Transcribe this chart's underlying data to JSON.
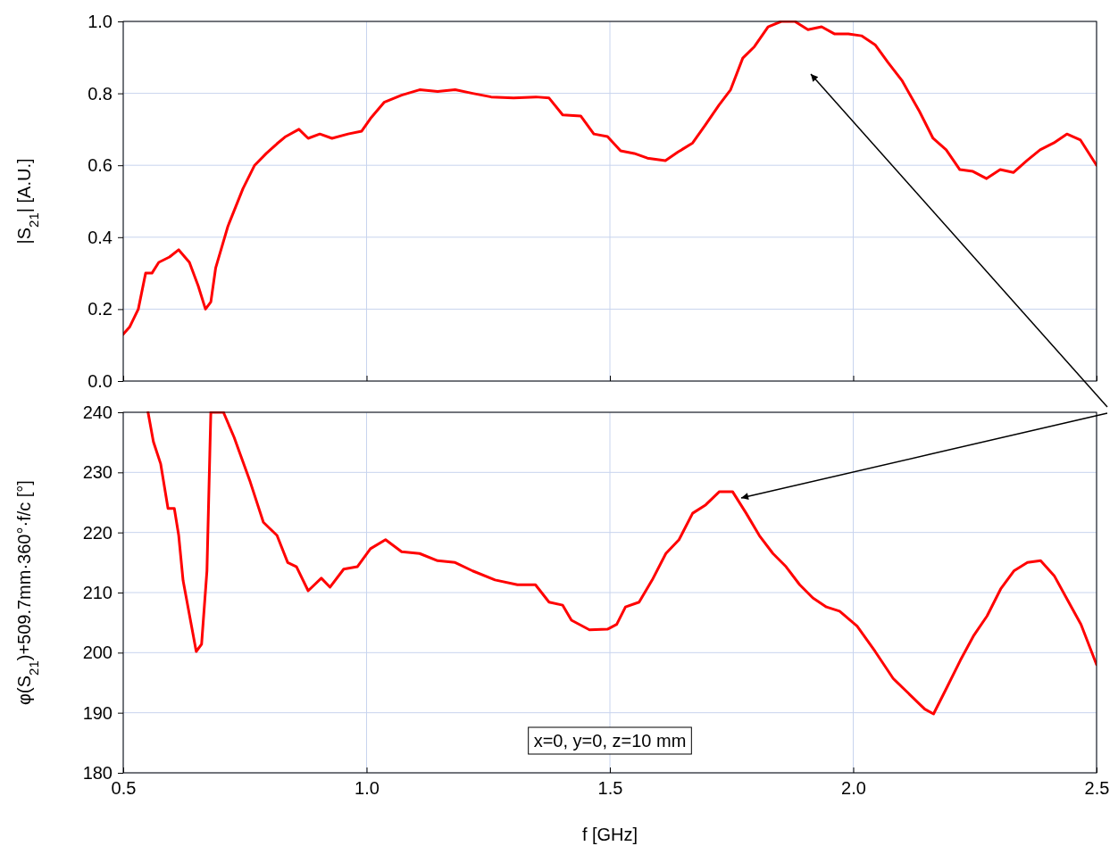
{
  "chart_data": [
    {
      "type": "line",
      "ylabel": "|S$_{21}$| [A.U.]",
      "tick_labels": "y",
      "grid": true,
      "xlim": [
        0.5,
        2.5
      ],
      "xticks": [
        {
          "value": 0.5,
          "label": null
        },
        {
          "value": 1,
          "label": null
        },
        {
          "value": 1.5,
          "label": null
        },
        {
          "value": 2,
          "label": null
        },
        {
          "value": 2.5,
          "label": null
        }
      ],
      "ylim": [
        0,
        1
      ],
      "yticks": [
        {
          "value": 0,
          "label": "0.0"
        },
        {
          "value": 0.2,
          "label": "0.2"
        },
        {
          "value": 0.4,
          "label": "0.4"
        },
        {
          "value": 0.6,
          "label": "0.6"
        },
        {
          "value": 0.8,
          "label": "0.8"
        },
        {
          "value": 1,
          "label": "1.0"
        }
      ],
      "series": [
        {
          "color": "#ff0000",
          "x": [
            0.5,
            0.513,
            0.531,
            0.546,
            0.559,
            0.573,
            0.595,
            0.614,
            0.636,
            0.654,
            0.669,
            0.68,
            0.69,
            0.715,
            0.746,
            0.77,
            0.794,
            0.816,
            0.834,
            0.861,
            0.88,
            0.904,
            0.929,
            0.962,
            0.99,
            1.008,
            1.036,
            1.072,
            1.109,
            1.146,
            1.182,
            1.218,
            1.256,
            1.302,
            1.348,
            1.375,
            1.403,
            1.44,
            1.467,
            1.495,
            1.522,
            1.55,
            1.577,
            1.614,
            1.64,
            1.67,
            1.696,
            1.724,
            1.748,
            1.773,
            1.797,
            1.825,
            1.852,
            1.88,
            1.907,
            1.935,
            1.962,
            1.99,
            2.017,
            2.045,
            2.072,
            2.1,
            2.136,
            2.164,
            2.191,
            2.219,
            2.246,
            2.274,
            2.302,
            2.329,
            2.357,
            2.384,
            2.412,
            2.439,
            2.467,
            2.5
          ],
          "values": [
            0.13,
            0.15,
            0.2,
            0.3,
            0.3,
            0.33,
            0.345,
            0.365,
            0.33,
            0.265,
            0.2,
            0.22,
            0.315,
            0.43,
            0.535,
            0.6,
            0.633,
            0.66,
            0.68,
            0.7,
            0.675,
            0.687,
            0.675,
            0.687,
            0.695,
            0.73,
            0.775,
            0.795,
            0.81,
            0.805,
            0.81,
            0.8,
            0.79,
            0.787,
            0.79,
            0.787,
            0.74,
            0.737,
            0.687,
            0.68,
            0.64,
            0.633,
            0.62,
            0.613,
            0.637,
            0.662,
            0.712,
            0.767,
            0.81,
            0.898,
            0.93,
            0.985,
            1.0,
            1.0,
            0.977,
            0.985,
            0.965,
            0.965,
            0.96,
            0.935,
            0.885,
            0.836,
            0.75,
            0.675,
            0.643,
            0.588,
            0.583,
            0.563,
            0.588,
            0.58,
            0.613,
            0.643,
            0.662,
            0.687,
            0.67,
            0.6
          ]
        }
      ]
    },
    {
      "type": "line",
      "xlabel": "f [GHz]",
      "ylabel": "φ(S$_{21}$)+509.7mm·360°·f/c [°]",
      "grid": true,
      "annotations": [
        "x=0, y=0, z=10 mm"
      ],
      "xlim": [
        0.5,
        2.5
      ],
      "xticks": [
        {
          "value": 0.5,
          "label": "0.5"
        },
        {
          "value": 1,
          "label": "1.0"
        },
        {
          "value": 1.5,
          "label": "1.5"
        },
        {
          "value": 2,
          "label": "2.0"
        },
        {
          "value": 2.5,
          "label": "2.5"
        }
      ],
      "ylim": [
        180,
        240
      ],
      "yticks": [
        180,
        190,
        200,
        210,
        220,
        230,
        240
      ],
      "series": [
        {
          "color": "#ff0000",
          "x": [
            0.551,
            0.562,
            0.577,
            0.592,
            0.605,
            0.614,
            0.623,
            0.65,
            0.661,
            0.672,
            0.68,
            0.706,
            0.728,
            0.761,
            0.788,
            0.816,
            0.838,
            0.856,
            0.88,
            0.907,
            0.925,
            0.953,
            0.981,
            1.008,
            1.039,
            1.072,
            1.109,
            1.146,
            1.182,
            1.218,
            1.264,
            1.31,
            1.347,
            1.375,
            1.403,
            1.421,
            1.458,
            1.495,
            1.514,
            1.532,
            1.56,
            1.587,
            1.615,
            1.642,
            1.67,
            1.697,
            1.725,
            1.752,
            1.78,
            1.807,
            1.835,
            1.862,
            1.89,
            1.917,
            1.945,
            1.972,
            2.008,
            2.045,
            2.082,
            2.119,
            2.147,
            2.165,
            2.193,
            2.22,
            2.248,
            2.275,
            2.303,
            2.33,
            2.358,
            2.385,
            2.413,
            2.44,
            2.468,
            2.5
          ],
          "values": [
            240,
            235.1,
            231.4,
            224,
            224,
            219.5,
            212,
            200.2,
            201.4,
            213.6,
            240,
            240,
            235.8,
            228.4,
            221.7,
            219.5,
            215,
            214.3,
            210.3,
            212.4,
            210.9,
            213.9,
            214.3,
            217.3,
            218.8,
            216.8,
            216.5,
            215.3,
            215,
            213.6,
            212.1,
            211.3,
            211.3,
            208.4,
            207.9,
            205.4,
            203.8,
            203.9,
            204.7,
            207.6,
            208.4,
            212.1,
            216.5,
            218.8,
            223.2,
            224.6,
            226.8,
            226.8,
            223.2,
            219.5,
            216.5,
            214.3,
            211.3,
            209.1,
            207.6,
            206.9,
            204.4,
            200.2,
            195.7,
            192.8,
            190.6,
            189.8,
            194.3,
            198.7,
            202.9,
            206.1,
            210.6,
            213.6,
            215,
            215.3,
            212.8,
            208.8,
            204.7,
            198
          ]
        }
      ]
    }
  ]
}
